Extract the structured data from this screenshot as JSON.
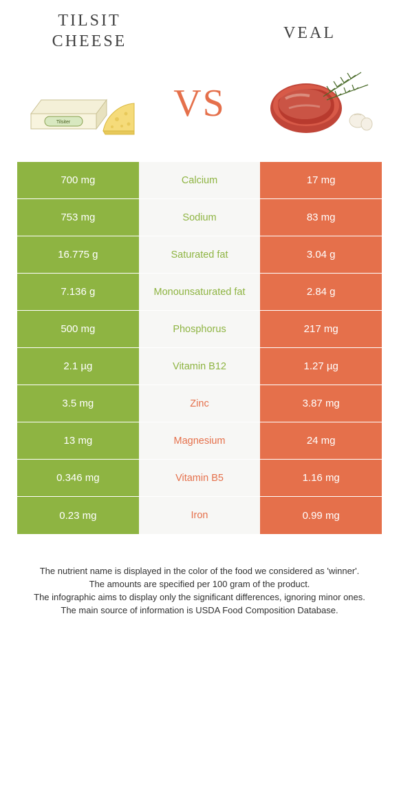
{
  "titles": {
    "left_line1": "TILSIT",
    "left_line2": "CHEESE",
    "right": "VEAL",
    "vs": "VS"
  },
  "colors": {
    "left": "#8eb442",
    "right": "#e5704b",
    "mid_bg": "#f7f7f5"
  },
  "rows": [
    {
      "left": "700 mg",
      "label": "Calcium",
      "right": "17 mg",
      "winner": "left"
    },
    {
      "left": "753 mg",
      "label": "Sodium",
      "right": "83 mg",
      "winner": "left"
    },
    {
      "left": "16.775 g",
      "label": "Saturated fat",
      "right": "3.04 g",
      "winner": "left"
    },
    {
      "left": "7.136 g",
      "label": "Monounsaturated fat",
      "right": "2.84 g",
      "winner": "left"
    },
    {
      "left": "500 mg",
      "label": "Phosphorus",
      "right": "217 mg",
      "winner": "left"
    },
    {
      "left": "2.1 µg",
      "label": "Vitamin B12",
      "right": "1.27 µg",
      "winner": "left"
    },
    {
      "left": "3.5 mg",
      "label": "Zinc",
      "right": "3.87 mg",
      "winner": "right"
    },
    {
      "left": "13 mg",
      "label": "Magnesium",
      "right": "24 mg",
      "winner": "right"
    },
    {
      "left": "0.346 mg",
      "label": "Vitamin B5",
      "right": "1.16 mg",
      "winner": "right"
    },
    {
      "left": "0.23 mg",
      "label": "Iron",
      "right": "0.99 mg",
      "winner": "right"
    }
  ],
  "footer": {
    "line1": "The nutrient name is displayed in the color of the food we considered as 'winner'.",
    "line2": "The amounts are specified per 100 gram of the product.",
    "line3": "The infographic aims to display only the significant differences, ignoring minor ones.",
    "line4": "The main source of information is USDA Food Composition Database."
  }
}
